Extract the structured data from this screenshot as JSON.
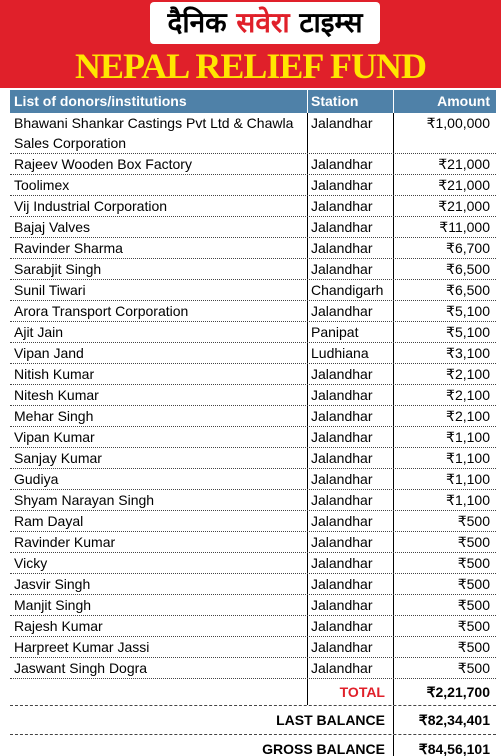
{
  "header": {
    "masthead": [
      "दैनिक",
      "सवेरा",
      "टाइम्स"
    ],
    "title": "NEPAL RELIEF FUND"
  },
  "table": {
    "header": [
      "List of donors/institutions",
      "Station",
      "Amount"
    ],
    "rows": [
      [
        "Bhawani Shankar Castings Pvt Ltd & Chawla Sales Corporation",
        "Jalandhar",
        "₹1,00,000"
      ],
      [
        "Rajeev Wooden Box Factory",
        "Jalandhar",
        "₹21,000"
      ],
      [
        "Toolimex",
        "Jalandhar",
        "₹21,000"
      ],
      [
        "Vij Industrial Corporation",
        "Jalandhar",
        "₹21,000"
      ],
      [
        "Bajaj Valves",
        "Jalandhar",
        "₹11,000"
      ],
      [
        "Ravinder Sharma",
        "Jalandhar",
        "₹6,700"
      ],
      [
        "Sarabjit Singh",
        "Jalandhar",
        "₹6,500"
      ],
      [
        "Sunil Tiwari",
        "Chandigarh",
        "₹6,500"
      ],
      [
        "Arora Transport Corporation",
        "Jalandhar",
        "₹5,100"
      ],
      [
        "Ajit Jain",
        "Panipat",
        "₹5,100"
      ],
      [
        "Vipan Jand",
        "Ludhiana",
        "₹3,100"
      ],
      [
        "Nitish Kumar",
        "Jalandhar",
        "₹2,100"
      ],
      [
        "Nitesh Kumar",
        "Jalandhar",
        "₹2,100"
      ],
      [
        "Mehar Singh",
        "Jalandhar",
        "₹2,100"
      ],
      [
        "Vipan Kumar",
        "Jalandhar",
        "₹1,100"
      ],
      [
        "Sanjay Kumar",
        "Jalandhar",
        "₹1,100"
      ],
      [
        "Gudiya",
        "Jalandhar",
        "₹1,100"
      ],
      [
        "Shyam Narayan Singh",
        "Jalandhar",
        "₹1,100"
      ],
      [
        "Ram Dayal",
        "Jalandhar",
        "₹500"
      ],
      [
        "Ravinder Kumar",
        "Jalandhar",
        "₹500"
      ],
      [
        "Vicky",
        "Jalandhar",
        "₹500"
      ],
      [
        "Jasvir Singh",
        "Jalandhar",
        "₹500"
      ],
      [
        "Manjit Singh",
        "Jalandhar",
        "₹500"
      ],
      [
        "Rajesh Kumar",
        "Jalandhar",
        "₹500"
      ],
      [
        "Harpreet Kumar Jassi",
        "Jalandhar",
        "₹500"
      ],
      [
        "Jaswant Singh Dogra",
        "Jalandhar",
        "₹500"
      ]
    ]
  },
  "footer": {
    "total": {
      "label": "TOTAL",
      "amount": "₹2,21,700"
    },
    "last_balance": {
      "label": "LAST BALANCE",
      "amount": "₹82,34,401"
    },
    "gross_balance": {
      "label": "GROSS BALANCE",
      "amount": "₹84,56,101"
    }
  }
}
